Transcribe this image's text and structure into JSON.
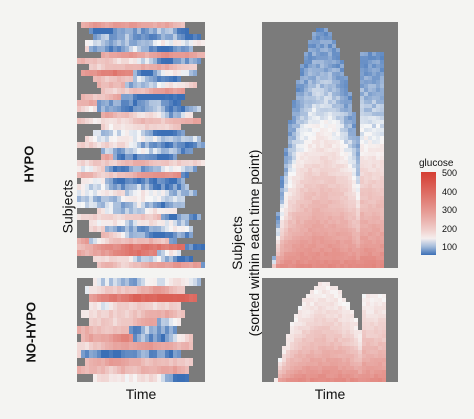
{
  "chart_data": {
    "type": "heatmap",
    "facets": [
      "HYPO",
      "NO-HYPO"
    ],
    "columns": [
      {
        "xlabel": "Time",
        "ylabel": "Subjects"
      },
      {
        "xlabel": "Time",
        "ylabel_line1": "Subjects",
        "ylabel_line2": "(sorted within each time point)"
      }
    ],
    "legend": {
      "title": "glucose",
      "ticks": [
        500,
        400,
        300,
        200,
        100
      ],
      "range": [
        60,
        500
      ],
      "colors": {
        "low": "#3b6fb6",
        "mid": "#f7f7f7",
        "high": "#d53e32"
      }
    }
  }
}
